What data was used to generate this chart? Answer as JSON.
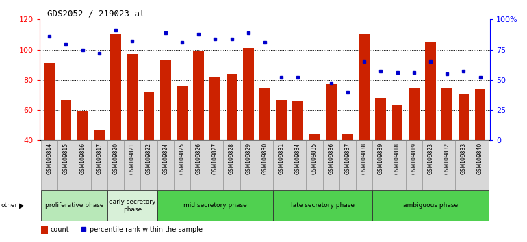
{
  "title": "GDS2052 / 219023_at",
  "samples": [
    "GSM109814",
    "GSM109815",
    "GSM109816",
    "GSM109817",
    "GSM109820",
    "GSM109821",
    "GSM109822",
    "GSM109824",
    "GSM109825",
    "GSM109826",
    "GSM109827",
    "GSM109828",
    "GSM109829",
    "GSM109830",
    "GSM109831",
    "GSM109834",
    "GSM109835",
    "GSM109836",
    "GSM109837",
    "GSM109838",
    "GSM109839",
    "GSM109818",
    "GSM109819",
    "GSM109823",
    "GSM109832",
    "GSM109833",
    "GSM109840"
  ],
  "counts": [
    91,
    67,
    59,
    47,
    110,
    97,
    72,
    93,
    76,
    99,
    82,
    84,
    101,
    75,
    67,
    66,
    44,
    77,
    44,
    110,
    68,
    63,
    75,
    105,
    75,
    71,
    74
  ],
  "percentiles": [
    86,
    79,
    75,
    72,
    91,
    82,
    null,
    89,
    81,
    88,
    84,
    84,
    89,
    81,
    52,
    52,
    null,
    47,
    40,
    65,
    57,
    56,
    56,
    65,
    55,
    57,
    52
  ],
  "phases": [
    {
      "name": "proliferative phase",
      "start": 0,
      "end": 4,
      "color": "#b8e8b8"
    },
    {
      "name": "early secretory\nphase",
      "start": 4,
      "end": 7,
      "color": "#d8f0d8"
    },
    {
      "name": "mid secretory phase",
      "start": 7,
      "end": 14,
      "color": "#60d060"
    },
    {
      "name": "late secretory phase",
      "start": 14,
      "end": 20,
      "color": "#60d060"
    },
    {
      "name": "ambiguous phase",
      "start": 20,
      "end": 27,
      "color": "#60d060"
    }
  ],
  "bar_color": "#cc2200",
  "marker_color": "#0000cc",
  "bg_color": "#ffffff",
  "ymin": 40,
  "ymax": 120,
  "yticks_left": [
    40,
    60,
    80,
    100,
    120
  ],
  "right_ticks_pct": [
    0,
    25,
    50,
    75,
    100
  ],
  "right_tick_labels": [
    "0",
    "25",
    "50",
    "75",
    "100%"
  ]
}
